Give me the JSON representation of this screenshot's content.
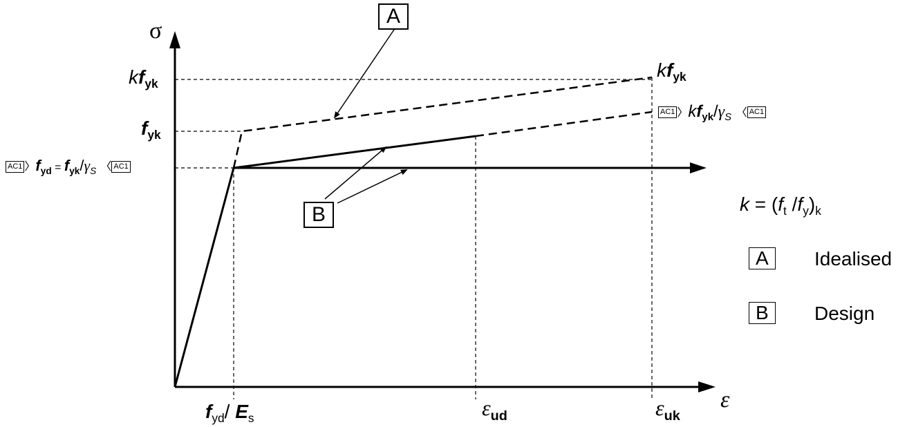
{
  "axes": {
    "y_axis_symbol": "σ",
    "x_axis_symbol": "ε"
  },
  "y_labels": {
    "kfyk_k": "k",
    "kfyk_f": "f",
    "kfyk_sub": "yk",
    "fyk_f": "f",
    "fyk_sub": "yk",
    "fyd_f": "f",
    "fyd_sub": "yd",
    "fyd_eq": " = ",
    "fyd_f2": "f",
    "fyd_sub2": "yk",
    "fyd_slash": "/",
    "fyd_gamma": "γ",
    "fyd_gamma_sub": "S"
  },
  "x_labels": {
    "fyd_f": "f",
    "fyd_sub": "yd",
    "slash": "/ ",
    "Es_E": "E",
    "Es_sub": "s",
    "eud_eps": "ε",
    "eud_sub": "ud",
    "euk_eps": "ε",
    "euk_sub": "uk"
  },
  "curve_labels": {
    "top_k": "k",
    "top_f": "f",
    "top_sub": "yk",
    "mid_k": "k",
    "mid_f": "f",
    "mid_sub": "yk",
    "mid_slash": "/",
    "mid_gamma": "γ",
    "mid_gamma_sub": "S"
  },
  "amendment_tag": "AC1",
  "callouts": {
    "A": "A",
    "B": "B"
  },
  "legend": {
    "k_def_k": "k",
    "k_def_eq": " = (",
    "k_def_ft": "f",
    "k_def_ft_sub": "t",
    "k_def_slash": " /",
    "k_def_fy": "f",
    "k_def_fy_sub": "y",
    "k_def_close": ")",
    "k_def_close_sub": "k",
    "items": [
      {
        "key": "A",
        "label": "Idealised"
      },
      {
        "key": "B",
        "label": "Design"
      }
    ]
  }
}
